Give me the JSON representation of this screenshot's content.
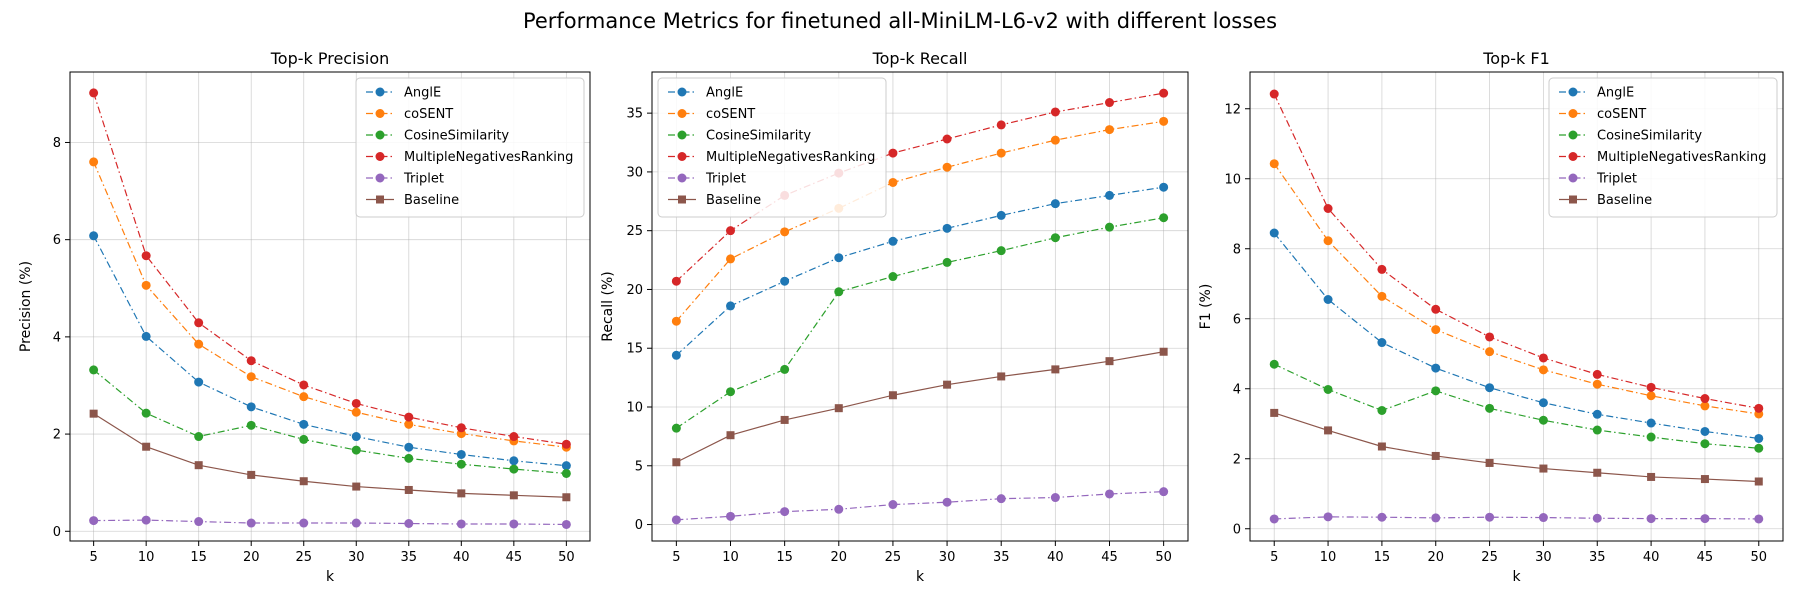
{
  "figure": {
    "title": "Performance Metrics for finetuned all-MiniLM-L6-v2 with different losses"
  },
  "colors": {
    "AnglE": "#1f77b4",
    "coSENT": "#ff7f0e",
    "CosineSimilarity": "#2ca02c",
    "MultipleNegativesRanking": "#d62728",
    "Triplet": "#9467bd",
    "Baseline": "#8c564b"
  },
  "chart_data": [
    {
      "type": "line",
      "title": "Top-k Precision",
      "xlabel": "k",
      "ylabel": "Precision (%)",
      "x": [
        5,
        10,
        15,
        20,
        25,
        30,
        35,
        40,
        45,
        50
      ],
      "xticks": [
        "5",
        "10",
        "15",
        "20",
        "25",
        "30",
        "35",
        "40",
        "45",
        "50"
      ],
      "ylim": [
        -0.2,
        9.45
      ],
      "yticks": [
        0,
        2,
        4,
        6,
        8
      ],
      "grid": true,
      "legend": "top-right",
      "series": [
        {
          "name": "AnglE",
          "marker": "circle",
          "linestyle": "dashdot",
          "values": [
            6.08,
            4.01,
            3.07,
            2.56,
            2.2,
            1.95,
            1.73,
            1.58,
            1.45,
            1.35
          ]
        },
        {
          "name": "coSENT",
          "marker": "circle",
          "linestyle": "dashdot",
          "values": [
            7.6,
            5.06,
            3.85,
            3.18,
            2.77,
            2.45,
            2.2,
            2.01,
            1.86,
            1.73
          ]
        },
        {
          "name": "CosineSimilarity",
          "marker": "circle",
          "linestyle": "dashdot",
          "values": [
            3.32,
            2.43,
            1.95,
            2.18,
            1.89,
            1.67,
            1.5,
            1.38,
            1.28,
            1.19
          ]
        },
        {
          "name": "MultipleNegativesRanking",
          "marker": "circle",
          "linestyle": "dashdot",
          "values": [
            9.02,
            5.67,
            4.29,
            3.51,
            3.01,
            2.63,
            2.35,
            2.13,
            1.95,
            1.79
          ]
        },
        {
          "name": "Triplet",
          "marker": "circle",
          "linestyle": "dashdot",
          "values": [
            0.22,
            0.23,
            0.2,
            0.17,
            0.17,
            0.17,
            0.16,
            0.15,
            0.15,
            0.14
          ]
        },
        {
          "name": "Baseline",
          "marker": "square",
          "linestyle": "solid",
          "values": [
            2.42,
            1.74,
            1.36,
            1.16,
            1.03,
            0.92,
            0.85,
            0.78,
            0.74,
            0.7
          ]
        }
      ]
    },
    {
      "type": "line",
      "title": "Top-k Recall",
      "xlabel": "k",
      "ylabel": "Recall (%)",
      "x": [
        5,
        10,
        15,
        20,
        25,
        30,
        35,
        40,
        45,
        50
      ],
      "xticks": [
        "5",
        "10",
        "15",
        "20",
        "25",
        "30",
        "35",
        "40",
        "45",
        "50"
      ],
      "ylim": [
        -1.4,
        38.5
      ],
      "yticks": [
        0,
        5,
        10,
        15,
        20,
        25,
        30,
        35
      ],
      "grid": true,
      "legend": "top-left",
      "series": [
        {
          "name": "AnglE",
          "marker": "circle",
          "linestyle": "dashdot",
          "values": [
            14.4,
            18.6,
            20.7,
            22.7,
            24.1,
            25.2,
            26.3,
            27.3,
            28.0,
            28.7
          ]
        },
        {
          "name": "coSENT",
          "marker": "circle",
          "linestyle": "dashdot",
          "values": [
            17.3,
            22.6,
            24.9,
            26.9,
            29.1,
            30.4,
            31.6,
            32.7,
            33.6,
            34.3
          ]
        },
        {
          "name": "CosineSimilarity",
          "marker": "circle",
          "linestyle": "dashdot",
          "values": [
            8.2,
            11.3,
            13.2,
            19.8,
            21.1,
            22.3,
            23.3,
            24.4,
            25.3,
            26.1
          ]
        },
        {
          "name": "MultipleNegativesRanking",
          "marker": "circle",
          "linestyle": "dashdot",
          "values": [
            20.7,
            25.0,
            28.0,
            29.9,
            31.6,
            32.8,
            34.0,
            35.1,
            35.9,
            36.7
          ]
        },
        {
          "name": "Triplet",
          "marker": "circle",
          "linestyle": "dashdot",
          "values": [
            0.4,
            0.7,
            1.1,
            1.3,
            1.7,
            1.9,
            2.2,
            2.3,
            2.6,
            2.8
          ]
        },
        {
          "name": "Baseline",
          "marker": "square",
          "linestyle": "solid",
          "values": [
            5.3,
            7.6,
            8.9,
            9.9,
            11.0,
            11.9,
            12.6,
            13.2,
            13.9,
            14.7
          ]
        }
      ]
    },
    {
      "type": "line",
      "title": "Top-k F1",
      "xlabel": "k",
      "ylabel": "F1 (%)",
      "x": [
        5,
        10,
        15,
        20,
        25,
        30,
        35,
        40,
        45,
        50
      ],
      "xticks": [
        "5",
        "10",
        "15",
        "20",
        "25",
        "30",
        "35",
        "40",
        "45",
        "50"
      ],
      "ylim": [
        -0.35,
        13.05
      ],
      "yticks": [
        0,
        2,
        4,
        6,
        8,
        10,
        12
      ],
      "grid": true,
      "legend": "top-right",
      "series": [
        {
          "name": "AnglE",
          "marker": "circle",
          "linestyle": "dashdot",
          "values": [
            8.45,
            6.55,
            5.32,
            4.59,
            4.03,
            3.6,
            3.27,
            3.02,
            2.78,
            2.58
          ]
        },
        {
          "name": "coSENT",
          "marker": "circle",
          "linestyle": "dashdot",
          "values": [
            10.43,
            8.23,
            6.64,
            5.69,
            5.06,
            4.54,
            4.13,
            3.8,
            3.51,
            3.28
          ]
        },
        {
          "name": "CosineSimilarity",
          "marker": "circle",
          "linestyle": "dashdot",
          "values": [
            4.7,
            3.98,
            3.38,
            3.94,
            3.44,
            3.1,
            2.82,
            2.62,
            2.43,
            2.3
          ]
        },
        {
          "name": "MultipleNegativesRanking",
          "marker": "circle",
          "linestyle": "dashdot",
          "values": [
            12.42,
            9.15,
            7.41,
            6.27,
            5.48,
            4.88,
            4.41,
            4.04,
            3.72,
            3.44
          ]
        },
        {
          "name": "Triplet",
          "marker": "circle",
          "linestyle": "dashdot",
          "values": [
            0.28,
            0.34,
            0.33,
            0.31,
            0.33,
            0.32,
            0.3,
            0.29,
            0.29,
            0.28
          ]
        },
        {
          "name": "Baseline",
          "marker": "square",
          "linestyle": "solid",
          "values": [
            3.31,
            2.81,
            2.35,
            2.08,
            1.88,
            1.72,
            1.6,
            1.48,
            1.42,
            1.35
          ]
        }
      ]
    }
  ]
}
